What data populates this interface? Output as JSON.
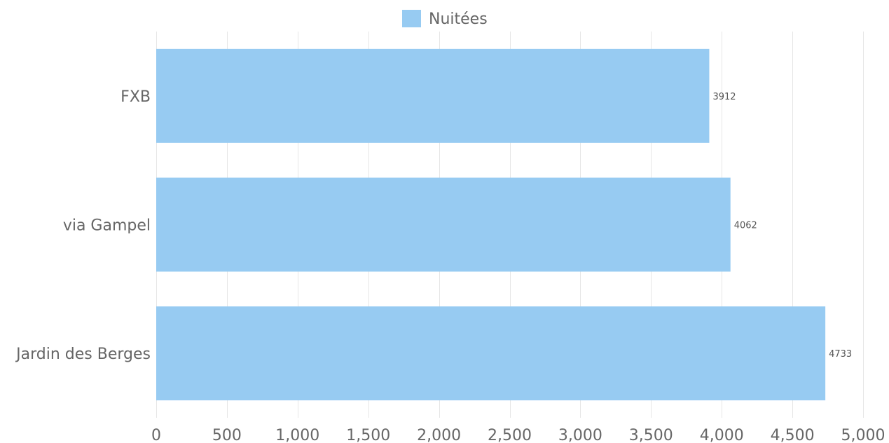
{
  "chart_data": {
    "type": "bar",
    "orientation": "horizontal",
    "categories": [
      "FXB",
      "via Gampel",
      "Jardin des Berges"
    ],
    "series": [
      {
        "name": "Nuitées",
        "values": [
          3912,
          4062,
          4733
        ],
        "color": "#97cbf2"
      }
    ],
    "data_labels": [
      "3912",
      "4062",
      "4733"
    ],
    "xlim": [
      0,
      5000
    ],
    "x_ticks": [
      0,
      500,
      1000,
      1500,
      2000,
      2500,
      3000,
      3500,
      4000,
      4500,
      5000
    ],
    "x_tick_labels": [
      "0",
      "500",
      "1,000",
      "1,500",
      "2,000",
      "2,500",
      "3,000",
      "3,500",
      "4,000",
      "4,500",
      "5,000"
    ],
    "grid": true,
    "legend_position": "top-center",
    "colors": {
      "bar": "#97cbf2",
      "grid": "#e6e6e6",
      "text": "#666666",
      "data_label": "#555555"
    }
  }
}
